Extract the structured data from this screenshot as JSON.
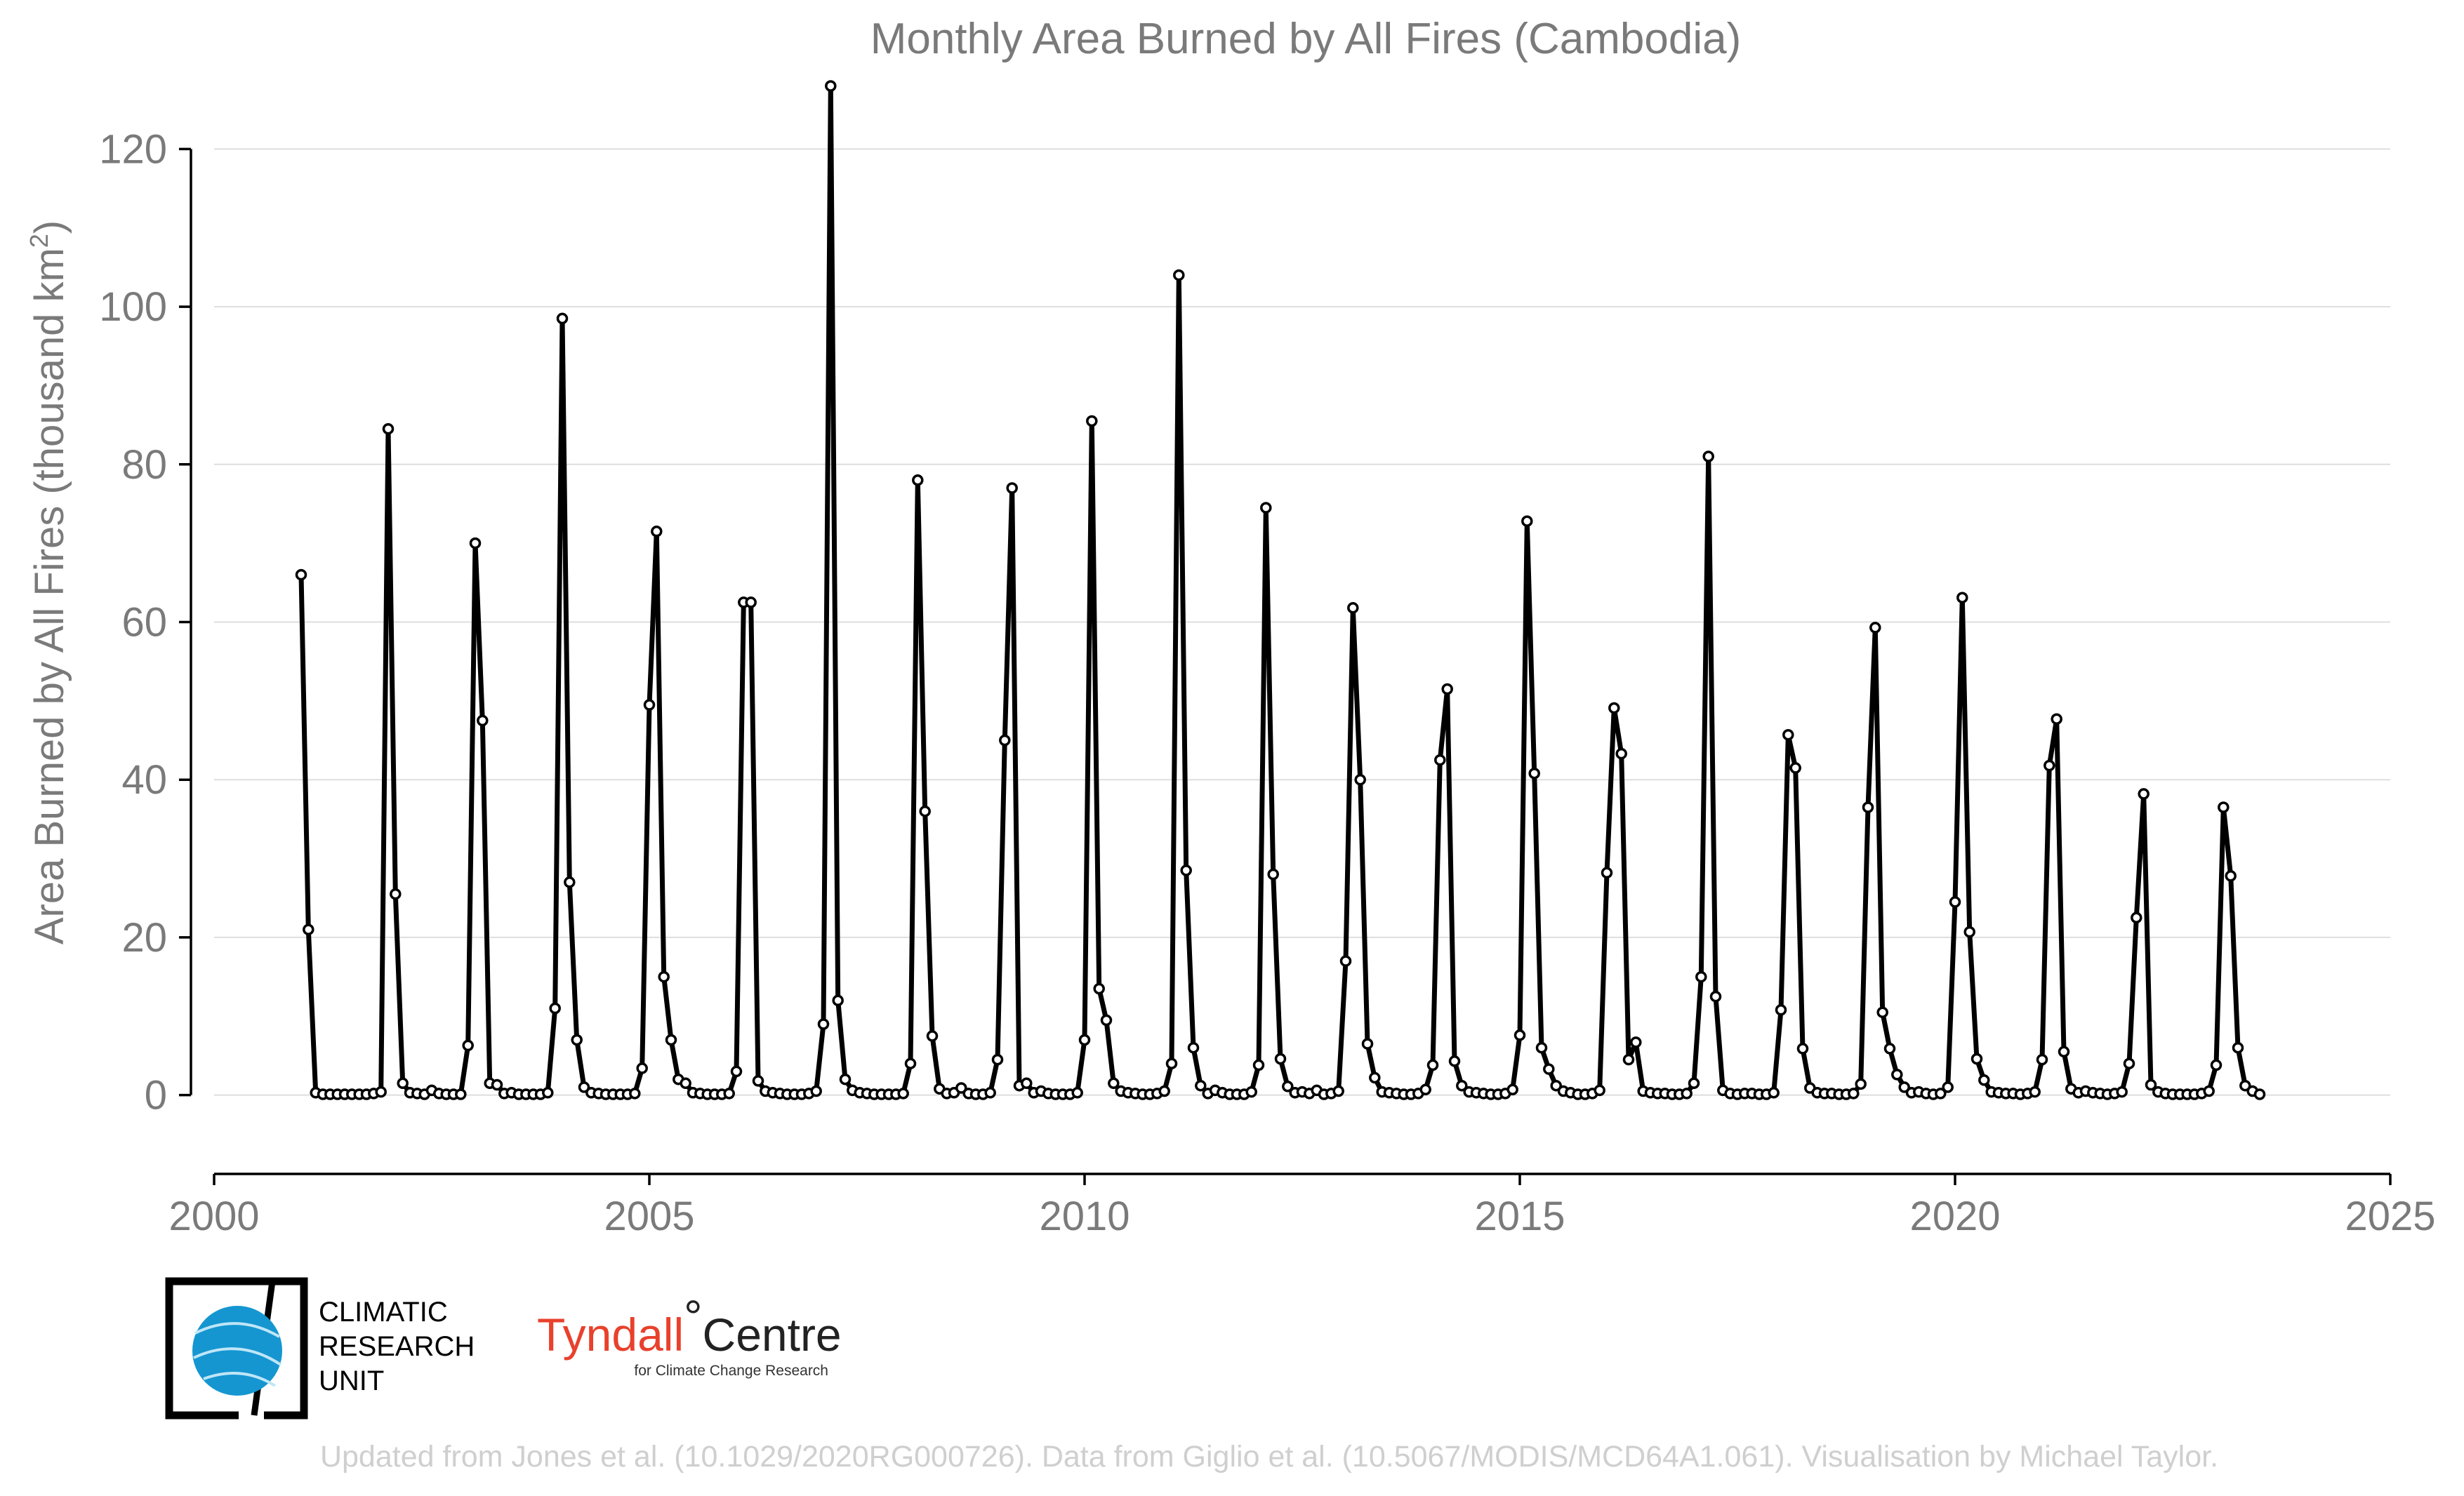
{
  "chart_data": {
    "type": "line",
    "title": "Monthly Area Burned by All Fires (Cambodia)",
    "ylabel_main": "Area Burned by All Fires (thousand km",
    "ylabel_sup": "2",
    "ylabel_close": ")",
    "xlim": [
      2000,
      2025
    ],
    "ylim": [
      -10,
      130
    ],
    "x_ticks": [
      2000,
      2005,
      2010,
      2015,
      2020,
      2025
    ],
    "y_ticks": [
      0,
      20,
      40,
      60,
      80,
      100,
      120
    ],
    "grid": true,
    "start": {
      "year": 2001,
      "month": 1
    },
    "values": [
      66,
      21,
      0.3,
      0.1,
      0.1,
      0.1,
      0.1,
      0.1,
      0.1,
      0.1,
      0.2,
      0.4,
      84.5,
      25.5,
      1.5,
      0.3,
      0.2,
      0.1,
      0.6,
      0.2,
      0.1,
      0.1,
      0.1,
      6.3,
      70,
      47.5,
      1.5,
      1.3,
      0.2,
      0.3,
      0.1,
      0.1,
      0.1,
      0.1,
      0.3,
      11,
      98.5,
      27,
      7,
      1,
      0.3,
      0.2,
      0.1,
      0.1,
      0.1,
      0.1,
      0.2,
      3.4,
      49.5,
      71.5,
      15,
      7,
      2,
      1.5,
      0.3,
      0.2,
      0.1,
      0.1,
      0.1,
      0.2,
      3,
      62.5,
      62.5,
      1.8,
      0.5,
      0.3,
      0.2,
      0.1,
      0.1,
      0.1,
      0.2,
      0.5,
      9,
      128,
      12,
      2,
      0.6,
      0.3,
      0.2,
      0.1,
      0.1,
      0.1,
      0.1,
      0.2,
      4,
      78,
      36,
      7.5,
      0.8,
      0.2,
      0.3,
      0.9,
      0.2,
      0.1,
      0.1,
      0.3,
      4.5,
      45,
      77,
      1.2,
      1.5,
      0.3,
      0.5,
      0.2,
      0.1,
      0.1,
      0.1,
      0.3,
      7,
      85.5,
      13.5,
      9.5,
      1.5,
      0.5,
      0.3,
      0.2,
      0.1,
      0.1,
      0.2,
      0.5,
      4,
      104,
      28.5,
      6,
      1.2,
      0.2,
      0.6,
      0.3,
      0.1,
      0.1,
      0.1,
      0.4,
      3.8,
      74.5,
      28,
      4.6,
      1.1,
      0.3,
      0.4,
      0.2,
      0.6,
      0.1,
      0.2,
      0.5,
      17,
      61.8,
      40,
      6.5,
      2.2,
      0.4,
      0.3,
      0.2,
      0.1,
      0.1,
      0.2,
      0.7,
      3.8,
      42.5,
      51.5,
      4.3,
      1.2,
      0.4,
      0.3,
      0.2,
      0.1,
      0.1,
      0.2,
      0.7,
      7.6,
      72.8,
      40.8,
      6,
      3.3,
      1.2,
      0.5,
      0.3,
      0.1,
      0.1,
      0.2,
      0.6,
      28.2,
      49.1,
      43.3,
      4.5,
      6.7,
      0.5,
      0.3,
      0.2,
      0.2,
      0.1,
      0.1,
      0.2,
      1.5,
      15,
      81,
      12.5,
      0.6,
      0.2,
      0.1,
      0.2,
      0.2,
      0.1,
      0.1,
      0.3,
      10.8,
      45.7,
      41.5,
      5.9,
      0.9,
      0.3,
      0.2,
      0.2,
      0.1,
      0.1,
      0.2,
      1.4,
      36.5,
      59.3,
      10.5,
      5.9,
      2.6,
      1,
      0.3,
      0.4,
      0.2,
      0.1,
      0.2,
      1,
      24.5,
      63.1,
      20.7,
      4.6,
      1.9,
      0.4,
      0.3,
      0.2,
      0.2,
      0.1,
      0.2,
      0.4,
      4.5,
      41.8,
      47.7,
      5.5,
      0.8,
      0.3,
      0.5,
      0.3,
      0.2,
      0.1,
      0.2,
      0.4,
      4,
      22.5,
      38.2,
      1.3,
      0.4,
      0.2,
      0.1,
      0.1,
      0.1,
      0.1,
      0.2,
      0.5,
      3.8,
      36.5,
      27.8,
      6,
      1.2,
      0.5,
      0.1
    ]
  },
  "logos": {
    "cru_lines": [
      "CLIMATIC",
      "RESEARCH",
      "UNIT"
    ],
    "tyndall_main": "Tyndall",
    "tyndall_degree": "°",
    "tyndall_centre": "Centre",
    "tyndall_sub": "for Climate Change Research"
  },
  "credit": "Updated from Jones et al. (10.1029/2020RG000726). Data from Giglio et al. (10.5067/MODIS/MCD64A1.061). Visualisation by Michael Taylor."
}
